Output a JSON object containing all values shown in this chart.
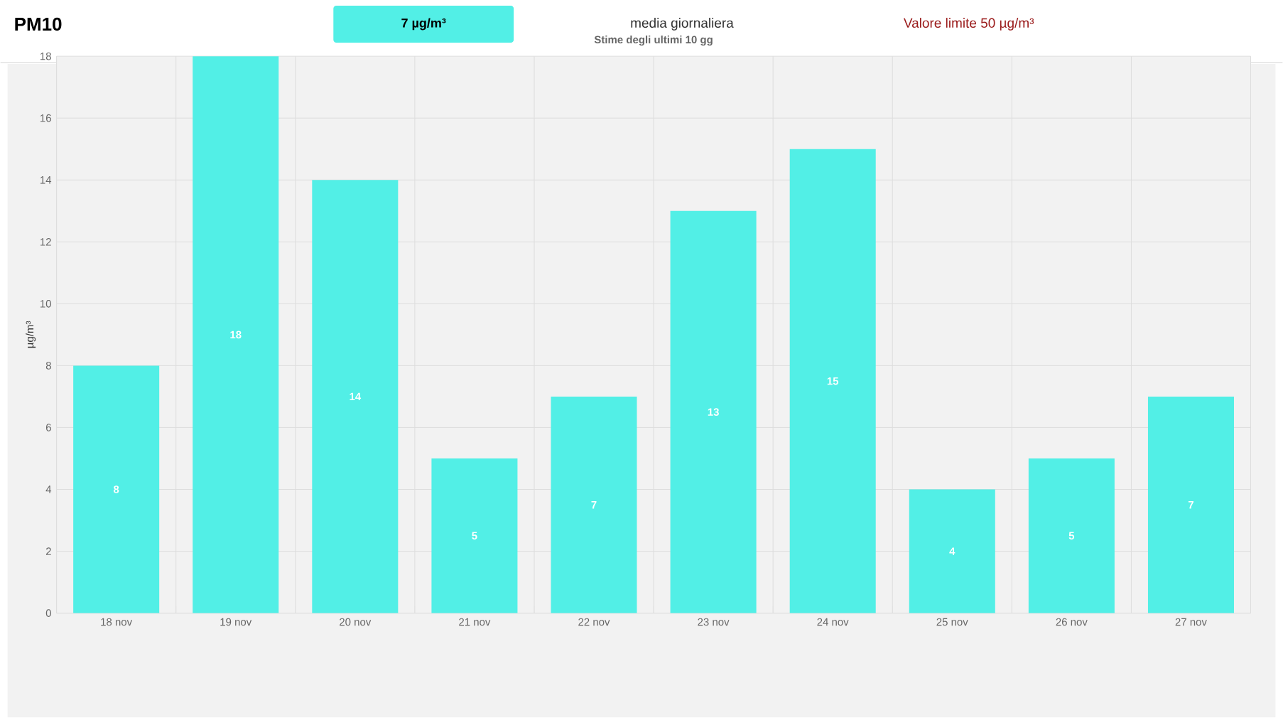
{
  "chart_data": {
    "type": "bar",
    "title": "Stime degli ultimi 10 gg",
    "annotations": [
      "PM10",
      "7 µg/m³",
      "media giornaliera",
      "Valore limite 50 µg/m³"
    ],
    "ylabel": "µg/m³",
    "categories": [
      "18 nov",
      "19 nov",
      "20 nov",
      "21 nov",
      "22 nov",
      "23 nov",
      "24 nov",
      "25 nov",
      "26 nov",
      "27 nov"
    ],
    "values": [
      8,
      18,
      14,
      5,
      7,
      13,
      15,
      4,
      5,
      7
    ],
    "color": "#52efe6",
    "ylim": [
      0,
      18
    ],
    "yticks": [
      0,
      2,
      4,
      6,
      8,
      10,
      12,
      14,
      16,
      18
    ],
    "grid": true,
    "data_labels": true
  }
}
